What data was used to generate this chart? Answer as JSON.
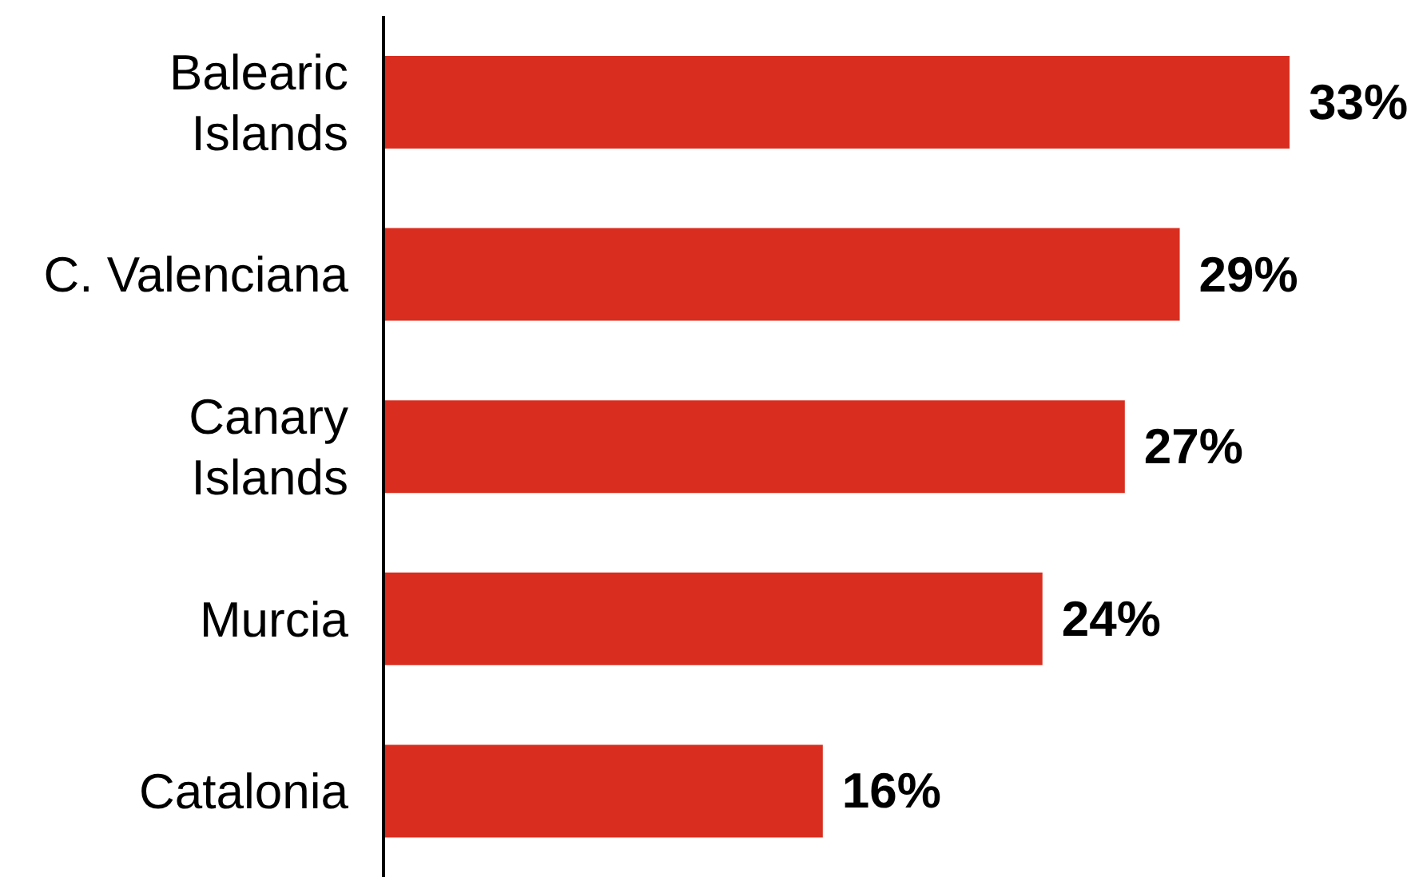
{
  "chart_data": {
    "type": "bar",
    "orientation": "horizontal",
    "categories": [
      "Balearic Islands",
      "C. Valenciana",
      "Canary Islands",
      "Murcia",
      "Catalonia"
    ],
    "values": [
      33,
      29,
      27,
      24,
      16
    ],
    "value_labels": [
      "33%",
      "29%",
      "27%",
      "24%",
      "16%"
    ],
    "color": "#d92e1f",
    "grid": false,
    "legend": false
  }
}
